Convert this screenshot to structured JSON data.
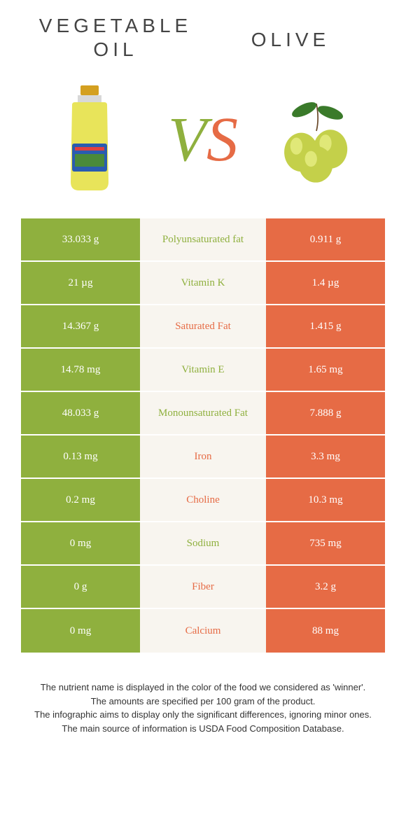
{
  "header": {
    "left_line1": "VEGETABLE",
    "left_line2": "OIL",
    "right": "OLIVE",
    "vs_v": "V",
    "vs_s": "S"
  },
  "colors": {
    "left_cell": "#8fb03e",
    "right_cell": "#e66b45",
    "mid_cell": "#f8f5ef",
    "left_text": "#8fb03e",
    "right_text": "#e66b45"
  },
  "rows": [
    {
      "left": "33.033 g",
      "label": "Polyunsaturated fat",
      "right": "0.911 g",
      "winner": "left"
    },
    {
      "left": "21 µg",
      "label": "Vitamin K",
      "right": "1.4 µg",
      "winner": "left"
    },
    {
      "left": "14.367 g",
      "label": "Saturated Fat",
      "right": "1.415 g",
      "winner": "right"
    },
    {
      "left": "14.78 mg",
      "label": "Vitamin E",
      "right": "1.65 mg",
      "winner": "left"
    },
    {
      "left": "48.033 g",
      "label": "Monounsaturated Fat",
      "right": "7.888 g",
      "winner": "left"
    },
    {
      "left": "0.13 mg",
      "label": "Iron",
      "right": "3.3 mg",
      "winner": "right"
    },
    {
      "left": "0.2 mg",
      "label": "Choline",
      "right": "10.3 mg",
      "winner": "right"
    },
    {
      "left": "0 mg",
      "label": "Sodium",
      "right": "735 mg",
      "winner": "left"
    },
    {
      "left": "0 g",
      "label": "Fiber",
      "right": "3.2 g",
      "winner": "right"
    },
    {
      "left": "0 mg",
      "label": "Calcium",
      "right": "88 mg",
      "winner": "right"
    }
  ],
  "footer": {
    "line1": "The nutrient name is displayed in the color of the food we considered as 'winner'.",
    "line2": "The amounts are specified per 100 gram of the product.",
    "line3": "The infographic aims to display only the significant differences, ignoring minor ones.",
    "line4": "The main source of information is USDA Food Composition Database."
  }
}
